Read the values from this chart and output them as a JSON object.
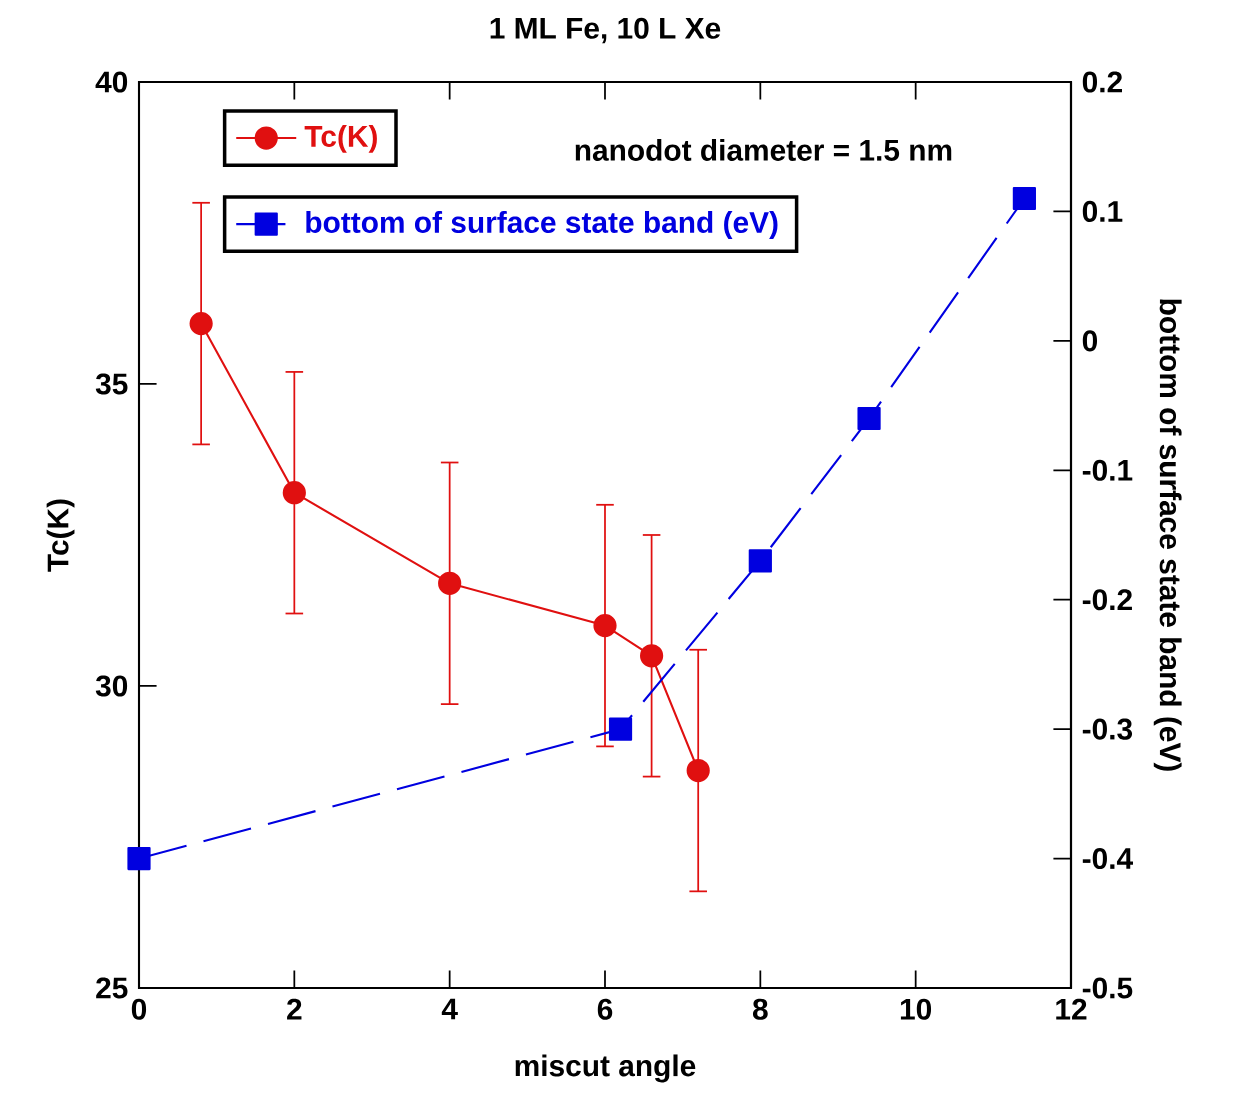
{
  "chart_data": {
    "type": "line",
    "title": "1 ML Fe, 10 L Xe",
    "xlabel": "miscut angle",
    "ylabel": "Tc(K)",
    "y2label": "bottom of surface state band (eV)",
    "annotations": [
      "nanodot diameter = 1.5 nm"
    ],
    "xlim": [
      0,
      12
    ],
    "xticks": [
      0,
      2,
      4,
      6,
      8,
      10,
      12
    ],
    "ylim": [
      25,
      40
    ],
    "yticks": [
      25,
      30,
      35,
      40
    ],
    "y2lim": [
      -0.5,
      0.2
    ],
    "y2ticks": [
      -0.5,
      -0.4,
      -0.3,
      -0.2,
      -0.1,
      0,
      0.1,
      0.2
    ],
    "legend": "top left",
    "grid": false,
    "series": [
      {
        "name": "Tc(K)",
        "color": "#e01010",
        "x": [
          0.8,
          2.0,
          4.0,
          6.0,
          6.6,
          7.2
        ],
        "values": [
          36.0,
          33.2,
          31.7,
          31.0,
          30.5,
          28.6
        ],
        "errors": [
          2,
          2,
          2,
          2,
          2,
          2
        ],
        "marker": "circle",
        "line_style": "solid"
      },
      {
        "name": "bottom of surface state band (eV)",
        "color": "#0000e0",
        "axis": "y2",
        "x": [
          0.0,
          6.2,
          8.0,
          9.4,
          11.4
        ],
        "values": [
          -0.4,
          -0.3,
          -0.17,
          -0.06,
          0.11
        ],
        "marker": "square",
        "line_style": "dashed"
      }
    ]
  }
}
